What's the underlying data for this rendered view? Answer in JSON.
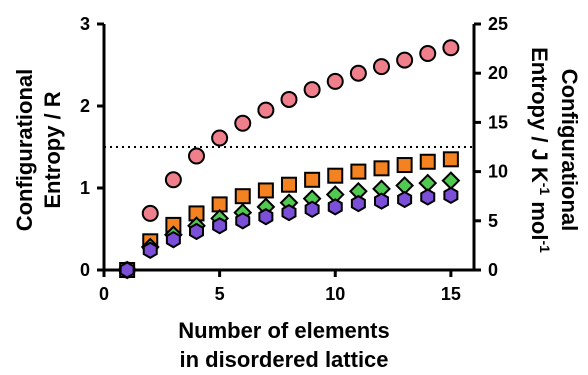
{
  "chart_data": {
    "type": "scatter",
    "xlabel_lines": [
      "Number of elements",
      "in disordered lattice"
    ],
    "ylabel_left_lines": [
      "Configurational",
      "Entropy / R"
    ],
    "ylabel_right_lines": [
      "Configurational",
      "Entropy / J K",
      "-1",
      " mol",
      "-1"
    ],
    "x_ticks": [
      "0",
      "5",
      "10",
      "15"
    ],
    "y_left_ticks": [
      "0",
      "1",
      "2",
      "3"
    ],
    "y_right_ticks": [
      "0",
      "5",
      "10",
      "15",
      "20",
      "25"
    ],
    "xlim": [
      0,
      16
    ],
    "ylim_left": [
      0,
      3
    ],
    "ylim_right": [
      0,
      25
    ],
    "reference_line": {
      "y": 1.5,
      "style": "dotted"
    },
    "grid": false,
    "series": [
      {
        "marker": "circle",
        "color": "#f07f8c",
        "x": [
          1,
          2,
          3,
          4,
          5,
          6,
          7,
          8,
          9,
          10,
          11,
          12,
          13,
          14,
          15
        ],
        "y": [
          0,
          0.69,
          1.1,
          1.39,
          1.61,
          1.79,
          1.95,
          2.08,
          2.2,
          2.3,
          2.4,
          2.48,
          2.56,
          2.64,
          2.71
        ]
      },
      {
        "marker": "square",
        "color": "#f58220",
        "x": [
          1,
          2,
          3,
          4,
          5,
          6,
          7,
          8,
          9,
          10,
          11,
          12,
          13,
          14,
          15
        ],
        "y": [
          0,
          0.35,
          0.55,
          0.69,
          0.8,
          0.9,
          0.97,
          1.04,
          1.1,
          1.15,
          1.2,
          1.24,
          1.28,
          1.32,
          1.35
        ]
      },
      {
        "marker": "diamond",
        "color": "#4fc94f",
        "x": [
          1,
          2,
          3,
          4,
          5,
          6,
          7,
          8,
          9,
          10,
          11,
          12,
          13,
          14,
          15
        ],
        "y": [
          0,
          0.28,
          0.43,
          0.54,
          0.63,
          0.7,
          0.77,
          0.82,
          0.87,
          0.92,
          0.96,
          0.99,
          1.03,
          1.06,
          1.09
        ]
      },
      {
        "marker": "hexagon",
        "color": "#7b4fd8",
        "x": [
          1,
          2,
          3,
          4,
          5,
          6,
          7,
          8,
          9,
          10,
          11,
          12,
          13,
          14,
          15
        ],
        "y": [
          0,
          0.24,
          0.37,
          0.47,
          0.54,
          0.6,
          0.65,
          0.7,
          0.74,
          0.77,
          0.81,
          0.84,
          0.86,
          0.89,
          0.91
        ]
      }
    ]
  }
}
